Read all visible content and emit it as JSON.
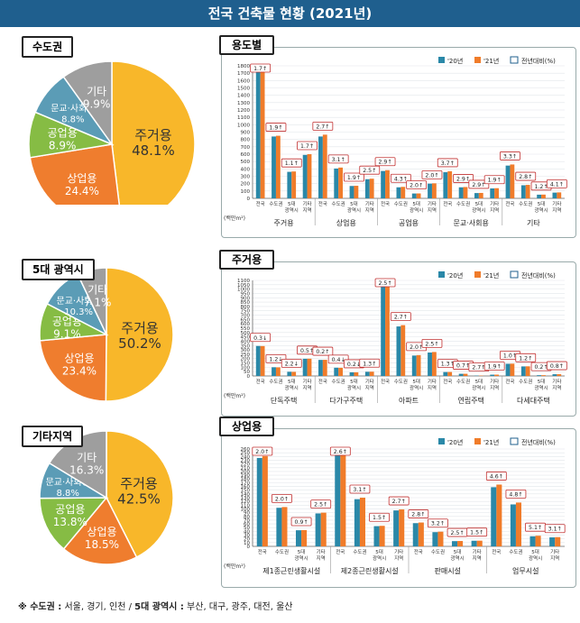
{
  "title": "전국 건축물 현황 (2021년)",
  "colors": {
    "c20": "#2a88a8",
    "c21": "#f07c2a",
    "box": "#c23030",
    "res": "#f8b72a",
    "com": "#ef7d2e",
    "ind": "#86bc44",
    "cul": "#5b9cb6",
    "etc": "#9e9e9e"
  },
  "legend": {
    "y20": "'20년",
    "y21": "'21년",
    "chg": "전년대비(%)"
  },
  "unit": "(백만m²)",
  "footer": {
    "p1": "※ 수도권 :",
    "p2": " 서울, 경기, 인천  / ",
    "p3": "5대 광역시 :",
    "p4": " 부산, 대구, 광주, 대전, 울산"
  },
  "pies": [
    {
      "title": "수도권",
      "slices": [
        {
          "label": "주거용",
          "value": "48.1%",
          "v": 48.1,
          "color": "res"
        },
        {
          "label": "상업용",
          "value": "24.4%",
          "v": 24.4,
          "color": "com"
        },
        {
          "label": "공업용",
          "value": "8.9%",
          "v": 8.9,
          "color": "ind"
        },
        {
          "label": "문교·사회용",
          "value": "8.8%",
          "v": 8.8,
          "color": "cul"
        },
        {
          "label": "기타",
          "value": "9.9%",
          "v": 9.9,
          "color": "etc"
        }
      ]
    },
    {
      "title": "5대 광역시",
      "slices": [
        {
          "label": "주거용",
          "value": "50.2%",
          "v": 50.2,
          "color": "res"
        },
        {
          "label": "상업용",
          "value": "23.4%",
          "v": 23.4,
          "color": "com"
        },
        {
          "label": "공업용",
          "value": "9.1%",
          "v": 9.1,
          "color": "ind"
        },
        {
          "label": "문교·사회용",
          "value": "10.3%",
          "v": 10.3,
          "color": "cul"
        },
        {
          "label": "기타",
          "value": "7.1%",
          "v": 7.1,
          "color": "etc"
        }
      ]
    },
    {
      "title": "기타지역",
      "slices": [
        {
          "label": "주거용",
          "value": "42.5%",
          "v": 42.5,
          "color": "res"
        },
        {
          "label": "상업용",
          "value": "18.5%",
          "v": 18.5,
          "color": "com"
        },
        {
          "label": "공업용",
          "value": "13.8%",
          "v": 13.8,
          "color": "ind"
        },
        {
          "label": "문교·사회용",
          "value": "8.8%",
          "v": 8.8,
          "color": "cul"
        },
        {
          "label": "기타",
          "value": "16.3%",
          "v": 16.3,
          "color": "etc"
        }
      ]
    }
  ],
  "chart_data": [
    {
      "type": "bar",
      "title": "용도별",
      "ymax": 1800,
      "yticks": [
        0,
        100,
        200,
        300,
        400,
        500,
        600,
        700,
        800,
        900,
        1000,
        1100,
        1200,
        1300,
        1400,
        1500,
        1600,
        1700,
        1800
      ],
      "groups": [
        {
          "name": "주거용",
          "items": [
            {
              "sub": "전국",
              "y20": 1760,
              "y21": 1790,
              "chg": "1.7↑"
            },
            {
              "sub": "수도권",
              "y20": 840,
              "y21": 850,
              "chg": "1.9↑"
            },
            {
              "sub": "5대 광역시",
              "y20": 360,
              "y21": 365,
              "chg": "1.1↑"
            },
            {
              "sub": "기타 지역",
              "y20": 590,
              "y21": 600,
              "chg": "1.7↑"
            }
          ]
        },
        {
          "name": "상업용",
          "items": [
            {
              "sub": "전국",
              "y20": 840,
              "y21": 865,
              "chg": "2.7↑"
            },
            {
              "sub": "수도권",
              "y20": 405,
              "y21": 418,
              "chg": "3.1↑"
            },
            {
              "sub": "5대 광역시",
              "y20": 168,
              "y21": 171,
              "chg": "1.9↑"
            },
            {
              "sub": "기타 지역",
              "y20": 260,
              "y21": 267,
              "chg": "2.5↑"
            }
          ]
        },
        {
          "name": "공업용",
          "items": [
            {
              "sub": "전국",
              "y20": 372,
              "y21": 383,
              "chg": "2.9↑"
            },
            {
              "sub": "수도권",
              "y20": 150,
              "y21": 156,
              "chg": "4.3↑"
            },
            {
              "sub": "5대 광역시",
              "y20": 66,
              "y21": 67,
              "chg": "2.0↑"
            },
            {
              "sub": "기타 지역",
              "y20": 200,
              "y21": 204,
              "chg": "2.0↑"
            }
          ]
        },
        {
          "name": "문교·사회용",
          "items": [
            {
              "sub": "전국",
              "y20": 355,
              "y21": 368,
              "chg": "3.7↑"
            },
            {
              "sub": "수도권",
              "y20": 150,
              "y21": 154,
              "chg": "2.9↑"
            },
            {
              "sub": "5대 광역시",
              "y20": 72,
              "y21": 74,
              "chg": "2.9↑"
            },
            {
              "sub": "기타 지역",
              "y20": 135,
              "y21": 138,
              "chg": "1.9↑"
            }
          ]
        },
        {
          "name": "기타",
          "items": [
            {
              "sub": "전국",
              "y20": 445,
              "y21": 460,
              "chg": "3.3↑"
            },
            {
              "sub": "수도권",
              "y20": 178,
              "y21": 183,
              "chg": "2.8↑"
            },
            {
              "sub": "5대 광역시",
              "y20": 50,
              "y21": 51,
              "chg": "1.2↑"
            },
            {
              "sub": "기타 지역",
              "y20": 78,
              "y21": 81,
              "chg": "4.1↑"
            }
          ]
        }
      ]
    },
    {
      "type": "bar",
      "title": "주거용",
      "ymax": 1100,
      "yticks": [
        0,
        50,
        100,
        150,
        200,
        250,
        300,
        350,
        400,
        450,
        500,
        550,
        600,
        650,
        700,
        750,
        800,
        850,
        900,
        950,
        1000,
        1050,
        1100
      ],
      "groups": [
        {
          "name": "단독주택",
          "items": [
            {
              "sub": "전국",
              "y20": 345,
              "y21": 344,
              "chg": "0.3↓",
              "down": true
            },
            {
              "sub": "수도권",
              "y20": 100,
              "y21": 99,
              "chg": "1.2↓",
              "down": true
            },
            {
              "sub": "5대 광역시",
              "y20": 48,
              "y21": 47,
              "chg": "2.2↓",
              "down": true
            },
            {
              "sub": "기타 지역",
              "y20": 198,
              "y21": 199,
              "chg": "0.5↑"
            }
          ]
        },
        {
          "name": "다가구주택",
          "items": [
            {
              "sub": "전국",
              "y20": 185,
              "y21": 186,
              "chg": "0.2↑"
            },
            {
              "sub": "수도권",
              "y20": 95,
              "y21": 94,
              "chg": "0.4↓",
              "down": true
            },
            {
              "sub": "5대 광역시",
              "y20": 42,
              "y21": 42,
              "chg": "0.2↓",
              "down": true
            },
            {
              "sub": "기타 지역",
              "y20": 48,
              "y21": 49,
              "chg": "1.3↑"
            }
          ]
        },
        {
          "name": "아파트",
          "items": [
            {
              "sub": "전국",
              "y20": 1090,
              "y21": 1117,
              "chg": "2.5↑"
            },
            {
              "sub": "수도권",
              "y20": 570,
              "y21": 585,
              "chg": "2.7↑"
            },
            {
              "sub": "5대 광역시",
              "y20": 235,
              "y21": 240,
              "chg": "2.0↑"
            },
            {
              "sub": "기타 지역",
              "y20": 270,
              "y21": 276,
              "chg": "2.5↑"
            }
          ]
        },
        {
          "name": "연립주택",
          "items": [
            {
              "sub": "전국",
              "y20": 45,
              "y21": 45.5,
              "chg": "1.3↑"
            },
            {
              "sub": "수도권",
              "y20": 25,
              "y21": 25.2,
              "chg": "0.7↑"
            },
            {
              "sub": "5대 광역시",
              "y20": 4,
              "y21": 4.1,
              "chg": "2.7↑"
            },
            {
              "sub": "기타 지역",
              "y20": 15,
              "y21": 15.3,
              "chg": "1.9↑"
            }
          ]
        },
        {
          "name": "다세대주택",
          "items": [
            {
              "sub": "전국",
              "y20": 140,
              "y21": 141.5,
              "chg": "1.0↑"
            },
            {
              "sub": "수도권",
              "y20": 110,
              "y21": 111,
              "chg": "1.2↑"
            },
            {
              "sub": "5대 광역시",
              "y20": 9,
              "y21": 9.1,
              "chg": "0.2↑"
            },
            {
              "sub": "기타 지역",
              "y20": 20,
              "y21": 20.2,
              "chg": "0.8↑"
            }
          ]
        }
      ]
    },
    {
      "type": "bar",
      "title": "상업용",
      "ymax": 260,
      "yticks": [
        0,
        10,
        20,
        30,
        40,
        50,
        60,
        70,
        80,
        90,
        100,
        110,
        120,
        130,
        140,
        150,
        160,
        170,
        180,
        190,
        200,
        210,
        220,
        230,
        240,
        250,
        260
      ],
      "groups": [
        {
          "name": "제1종근린생활시설",
          "items": [
            {
              "sub": "전국",
              "y20": 236,
              "y21": 241,
              "chg": "2.0↑"
            },
            {
              "sub": "수도권",
              "y20": 103,
              "y21": 105,
              "chg": "2.0↑"
            },
            {
              "sub": "5대 광역시",
              "y20": 43,
              "y21": 43.4,
              "chg": "0.9↑"
            },
            {
              "sub": "기타 지역",
              "y20": 88,
              "y21": 90,
              "chg": "2.5↑"
            }
          ]
        },
        {
          "name": "제2종근린생활시설",
          "items": [
            {
              "sub": "전국",
              "y20": 268,
              "y21": 275,
              "chg": "2.6↑"
            },
            {
              "sub": "수도권",
              "y20": 126,
              "y21": 130,
              "chg": "3.1↑"
            },
            {
              "sub": "5대 광역시",
              "y20": 54,
              "y21": 54.8,
              "chg": "1.5↑"
            },
            {
              "sub": "기타 지역",
              "y20": 96,
              "y21": 98.6,
              "chg": "2.7↑"
            }
          ]
        },
        {
          "name": "판매시설",
          "items": [
            {
              "sub": "전국",
              "y20": 62,
              "y21": 63.7,
              "chg": "2.8↑"
            },
            {
              "sub": "수도권",
              "y20": 38,
              "y21": 39.2,
              "chg": "3.2↑"
            },
            {
              "sub": "5대 광역시",
              "y20": 14,
              "y21": 14.35,
              "chg": "2.5↑"
            },
            {
              "sub": "기타 지역",
              "y20": 15,
              "y21": 15.2,
              "chg": "1.5↑"
            }
          ]
        },
        {
          "name": "업무시설",
          "items": [
            {
              "sub": "전국",
              "y20": 158,
              "y21": 165,
              "chg": "4.6↑"
            },
            {
              "sub": "수도권",
              "y20": 112,
              "y21": 117,
              "chg": "4.8↑"
            },
            {
              "sub": "5대 광역시",
              "y20": 27,
              "y21": 28.4,
              "chg": "5.1↑"
            },
            {
              "sub": "기타 지역",
              "y20": 24,
              "y21": 24.7,
              "chg": "3.1↑"
            }
          ]
        }
      ]
    }
  ]
}
